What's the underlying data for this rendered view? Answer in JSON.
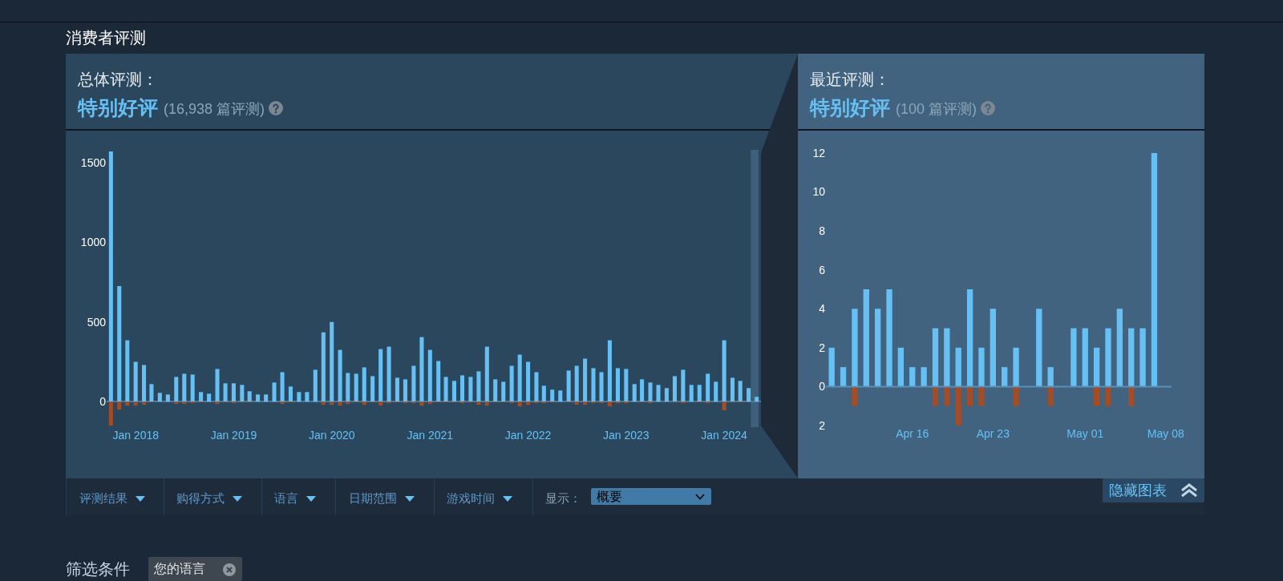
{
  "chart_data": [
    {
      "type": "other",
      "title": "消费者评测"
    },
    {
      "type": "bar",
      "title": "总体评测：",
      "subtitle": "特别好评",
      "annotations": [
        "(16,938 篇评测)"
      ],
      "x": [
        "2017-10",
        "2017-11",
        "2017-12",
        "2018-01",
        "2018-02",
        "2018-03",
        "2018-04",
        "2018-05",
        "2018-06",
        "2018-07",
        "2018-08",
        "2018-09",
        "2018-10",
        "2018-11",
        "2018-12",
        "2019-01",
        "2019-02",
        "2019-03",
        "2019-04",
        "2019-05",
        "2019-06",
        "2019-07",
        "2019-08",
        "2019-09",
        "2019-10",
        "2019-11",
        "2019-12",
        "2020-01",
        "2020-02",
        "2020-03",
        "2020-04",
        "2020-05",
        "2020-06",
        "2020-07",
        "2020-08",
        "2020-09",
        "2020-10",
        "2020-11",
        "2020-12",
        "2021-01",
        "2021-02",
        "2021-03",
        "2021-04",
        "2021-05",
        "2021-06",
        "2021-07",
        "2021-08",
        "2021-09",
        "2021-10",
        "2021-11",
        "2021-12",
        "2022-01",
        "2022-02",
        "2022-03",
        "2022-04",
        "2022-05",
        "2022-06",
        "2022-07",
        "2022-08",
        "2022-09",
        "2022-10",
        "2022-11",
        "2022-12",
        "2023-01",
        "2023-02",
        "2023-03",
        "2023-04",
        "2023-05",
        "2023-06",
        "2023-07",
        "2023-08",
        "2023-09",
        "2023-10",
        "2023-11",
        "2023-12",
        "2024-01",
        "2024-02",
        "2024-03",
        "2024-04",
        "2024-05"
      ],
      "series": [
        {
          "color": "#66c0f4",
          "values": [
            1570,
            725,
            385,
            250,
            230,
            110,
            55,
            45,
            155,
            175,
            170,
            60,
            50,
            205,
            115,
            115,
            105,
            65,
            45,
            45,
            120,
            185,
            95,
            60,
            60,
            200,
            435,
            500,
            325,
            180,
            175,
            215,
            160,
            330,
            345,
            150,
            140,
            225,
            405,
            325,
            255,
            155,
            130,
            165,
            155,
            190,
            345,
            140,
            125,
            225,
            295,
            250,
            185,
            100,
            75,
            70,
            195,
            225,
            270,
            210,
            185,
            385,
            210,
            205,
            110,
            140,
            120,
            105,
            85,
            160,
            200,
            105,
            105,
            175,
            125,
            385,
            150,
            130,
            85,
            30
          ]
        },
        {
          "color": "#a34c25",
          "values": [
            -150,
            -50,
            -25,
            -25,
            -20,
            -5,
            null,
            null,
            -15,
            -15,
            -10,
            -5,
            null,
            -15,
            -5,
            -10,
            -5,
            -5,
            null,
            null,
            null,
            -15,
            -5,
            null,
            null,
            null,
            -20,
            -20,
            -25,
            -15,
            -5,
            -20,
            -5,
            -25,
            -10,
            -5,
            -10,
            -10,
            -25,
            -15,
            -5,
            -5,
            -5,
            -10,
            -5,
            -20,
            -25,
            -5,
            -5,
            -10,
            -30,
            -20,
            -10,
            -10,
            -5,
            null,
            -5,
            -20,
            -20,
            -10,
            -10,
            -30,
            -10,
            -10,
            null,
            -5,
            -10,
            null,
            null,
            -5,
            -10,
            null,
            -5,
            -10,
            null,
            -55,
            -5,
            -5,
            null,
            null
          ]
        }
      ],
      "stacked": true,
      "xlim": [
        "2017-09-15",
        "2024-05-20"
      ],
      "xticks": [
        {
          "value": "2018-01",
          "label": "Jan 2018"
        },
        {
          "value": "2019-01",
          "label": "Jan 2019"
        },
        {
          "value": "2020-01",
          "label": "Jan 2020"
        },
        {
          "value": "2021-01",
          "label": "Jan 2021"
        },
        {
          "value": "2022-01",
          "label": "Jan 2022"
        },
        {
          "value": "2023-01",
          "label": "Jan 2023"
        },
        {
          "value": "2024-01",
          "label": "Jan 2024"
        }
      ],
      "ylim": [
        -160,
        1580
      ],
      "yticks": [
        0,
        500,
        1000,
        1500
      ],
      "bands": [
        {
          "axis": "x",
          "from": "2024-04-09",
          "to": "2024-05-08",
          "color": "#3e607c"
        }
      ]
    },
    {
      "type": "bar",
      "title": "最近评测：",
      "subtitle": "特别好评",
      "annotations": [
        "(100 篇评测)"
      ],
      "x": [
        "2024-04-09",
        "2024-04-10",
        "2024-04-11",
        "2024-04-12",
        "2024-04-13",
        "2024-04-14",
        "2024-04-15",
        "2024-04-16",
        "2024-04-17",
        "2024-04-18",
        "2024-04-19",
        "2024-04-20",
        "2024-04-21",
        "2024-04-22",
        "2024-04-23",
        "2024-04-24",
        "2024-04-25",
        "2024-04-26",
        "2024-04-27",
        "2024-04-28",
        "2024-04-29",
        "2024-04-30",
        "2024-05-01",
        "2024-05-02",
        "2024-05-03",
        "2024-05-04",
        "2024-05-05",
        "2024-05-06",
        "2024-05-07"
      ],
      "series": [
        {
          "color": "#66c0f4",
          "values": [
            2,
            1,
            4,
            5,
            4,
            5,
            2,
            1,
            1,
            3,
            3,
            2,
            5,
            2,
            4,
            1,
            2,
            null,
            4,
            1,
            null,
            3,
            3,
            2,
            3,
            4,
            3,
            3,
            12
          ]
        },
        {
          "color": "#a34c25",
          "values": [
            null,
            null,
            -1,
            null,
            null,
            null,
            null,
            null,
            null,
            -1,
            -1,
            -2,
            -1,
            -1,
            null,
            null,
            -1,
            null,
            null,
            -1,
            null,
            null,
            null,
            -1,
            -1,
            null,
            -1,
            null,
            null
          ]
        }
      ],
      "stacked": true,
      "xlim": [
        "2024-04-08T12:00",
        "2024-05-08T12:00"
      ],
      "xticks": [
        {
          "value": "2024-04-16",
          "label": "Apr 16"
        },
        {
          "value": "2024-04-23",
          "label": "Apr 23"
        },
        {
          "value": "2024-05-01",
          "label": "May 01"
        },
        {
          "value": "2024-05-08",
          "label": "May 08"
        }
      ],
      "ylim": [
        -2,
        12
      ],
      "yticks": [
        {
          "value": -2,
          "label": "2"
        },
        0,
        2,
        4,
        6,
        8,
        10,
        12
      ],
      "ref_lines": [
        {
          "axis": "y",
          "value": 0,
          "color": "#5a8fb8"
        }
      ]
    },
    {
      "type": "other",
      "annotations": [
        "评测结果",
        "购得方式",
        "语言",
        "日期范围",
        "游戏时间",
        "显示：",
        "概要",
        "隐藏图表"
      ]
    },
    {
      "type": "other",
      "title": "筛选条件",
      "annotations": [
        "您的语言"
      ]
    }
  ]
}
